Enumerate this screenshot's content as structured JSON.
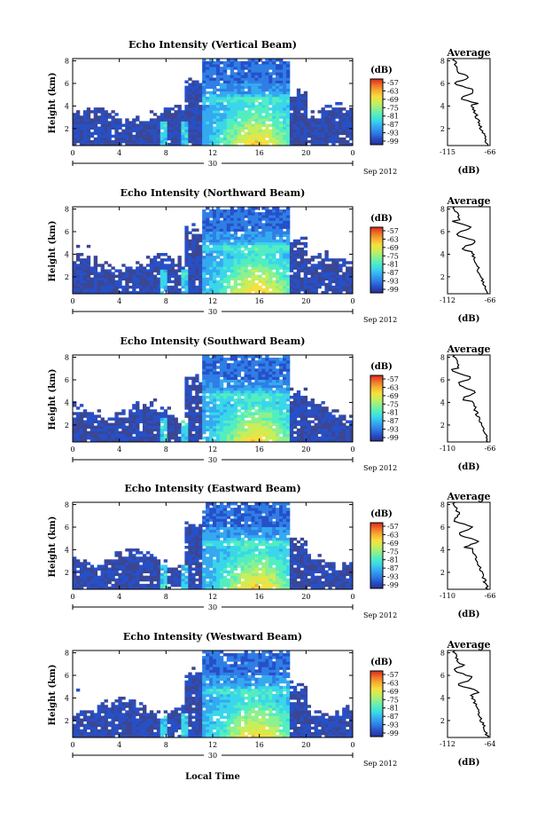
{
  "figure": {
    "xlabel": "Local Time",
    "date_label": "Sep 2012",
    "day_label": "30"
  },
  "colors": {
    "background_pixel": "#3b4694",
    "colormap": [
      "#2b2f8f",
      "#2650c8",
      "#2f7ee6",
      "#34a9f0",
      "#3ad6ea",
      "#52eec0",
      "#8ef08e",
      "#c8ee5a",
      "#f5e040",
      "#f8b030",
      "#f07028",
      "#d8281e"
    ]
  },
  "chart_data": [
    {
      "type": "heatmap",
      "title": "Echo Intensity (Vertical Beam)",
      "ylabel": "Height (km)",
      "x_ticks": [
        "0",
        "4",
        "8",
        "12",
        "16",
        "20",
        "0"
      ],
      "xlim": [
        0,
        24
      ],
      "ylim": [
        0.5,
        8.2
      ],
      "y_ticks": [
        "2",
        "4",
        "6",
        "8"
      ],
      "colorbar": {
        "label": "(dB)",
        "ticks": [
          "-57",
          "-63",
          "-69",
          "-75",
          "-81",
          "-87",
          "-93",
          "-99"
        ]
      },
      "profile": {
        "title": "Average",
        "xlabel": "(dB)",
        "x_ticks": [
          "-115",
          "-66"
        ],
        "y_ticks": [
          "2",
          "4",
          "6",
          "8"
        ]
      }
    },
    {
      "type": "heatmap",
      "title": "Echo Intensity (Northward Beam)",
      "ylabel": "Height (km)",
      "x_ticks": [
        "0",
        "4",
        "8",
        "12",
        "16",
        "20",
        "0"
      ],
      "xlim": [
        0,
        24
      ],
      "ylim": [
        0.5,
        8.2
      ],
      "y_ticks": [
        "2",
        "4",
        "6",
        "8"
      ],
      "colorbar": {
        "label": "(dB)",
        "ticks": [
          "-57",
          "-63",
          "-69",
          "-75",
          "-81",
          "-87",
          "-93",
          "-99"
        ]
      },
      "profile": {
        "title": "Average",
        "xlabel": "(dB)",
        "x_ticks": [
          "-112",
          "-66"
        ],
        "y_ticks": [
          "2",
          "4",
          "6",
          "8"
        ]
      }
    },
    {
      "type": "heatmap",
      "title": "Echo Intensity (Southward Beam)",
      "ylabel": "Height (km)",
      "x_ticks": [
        "0",
        "4",
        "8",
        "12",
        "16",
        "20",
        "0"
      ],
      "xlim": [
        0,
        24
      ],
      "ylim": [
        0.5,
        8.2
      ],
      "y_ticks": [
        "2",
        "4",
        "6",
        "8"
      ],
      "colorbar": {
        "label": "(dB)",
        "ticks": [
          "-57",
          "-63",
          "-69",
          "-75",
          "-81",
          "-87",
          "-93",
          "-99"
        ]
      },
      "profile": {
        "title": "Average",
        "xlabel": "(dB)",
        "x_ticks": [
          "-110",
          "-66"
        ],
        "y_ticks": [
          "2",
          "4",
          "6",
          "8"
        ]
      }
    },
    {
      "type": "heatmap",
      "title": "Echo Intensity (Eastward Beam)",
      "ylabel": "Height (km)",
      "x_ticks": [
        "0",
        "4",
        "8",
        "12",
        "16",
        "20",
        "0"
      ],
      "xlim": [
        0,
        24
      ],
      "ylim": [
        0.5,
        8.2
      ],
      "y_ticks": [
        "2",
        "4",
        "6",
        "8"
      ],
      "colorbar": {
        "label": "(dB)",
        "ticks": [
          "-57",
          "-63",
          "-69",
          "-75",
          "-81",
          "-87",
          "-93",
          "-99"
        ]
      },
      "profile": {
        "title": "Average",
        "xlabel": "(dB)",
        "x_ticks": [
          "-110",
          "-66"
        ],
        "y_ticks": [
          "2",
          "4",
          "6",
          "8"
        ]
      }
    },
    {
      "type": "heatmap",
      "title": "Echo Intensity (Westward Beam)",
      "ylabel": "Height (km)",
      "x_ticks": [
        "0",
        "4",
        "8",
        "12",
        "16",
        "20",
        "0"
      ],
      "xlim": [
        0,
        24
      ],
      "ylim": [
        0.5,
        8.2
      ],
      "y_ticks": [
        "2",
        "4",
        "6",
        "8"
      ],
      "colorbar": {
        "label": "(dB)",
        "ticks": [
          "-57",
          "-63",
          "-69",
          "-75",
          "-81",
          "-87",
          "-93",
          "-99"
        ]
      },
      "profile": {
        "title": "Average",
        "xlabel": "(dB)",
        "x_ticks": [
          "-112",
          "-64"
        ],
        "y_ticks": [
          "2",
          "4",
          "6",
          "8"
        ]
      }
    }
  ]
}
